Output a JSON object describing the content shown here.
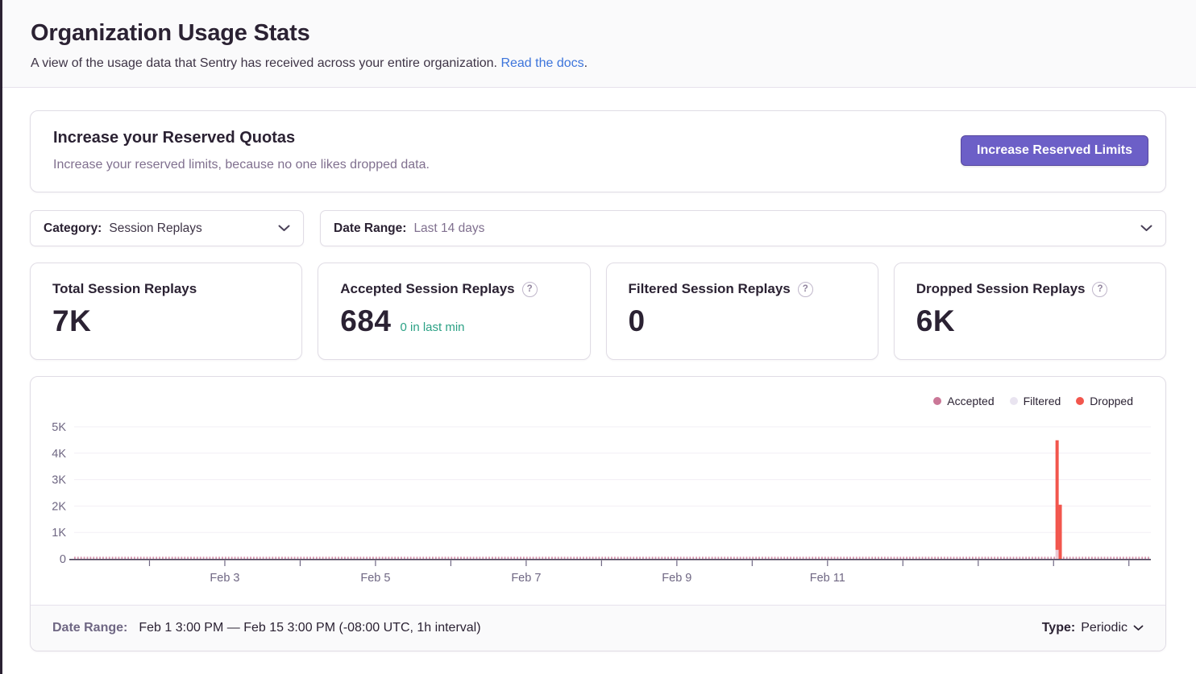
{
  "page": {
    "title": "Organization Usage Stats",
    "subtitle": "A view of the usage data that Sentry has received across your entire organization.",
    "docs_link": "Read the docs",
    "subtitle_period": "."
  },
  "quota_banner": {
    "title": "Increase your Reserved Quotas",
    "description": "Increase your reserved limits, because no one likes dropped data.",
    "button_label": "Increase Reserved Limits",
    "button_color": "#6C5FC7"
  },
  "filters": {
    "category_label": "Category:",
    "category_value": "Session Replays",
    "date_range_label": "Date Range:",
    "date_range_value": "Last 14 days"
  },
  "score_cards": [
    {
      "title": "Total Session Replays",
      "value": "7K"
    },
    {
      "title": "Accepted Session Replays",
      "value": "684",
      "trend": "0 in last min"
    },
    {
      "title": "Filtered Session Replays",
      "value": "0"
    },
    {
      "title": "Dropped Session Replays",
      "value": "6K"
    }
  ],
  "icons": {
    "help_glyph": "?"
  },
  "chart_data": {
    "type": "bar",
    "stacked": true,
    "interval": "1h",
    "x_start": "Feb 1",
    "x_end": "Feb 15",
    "hours_total": 343,
    "day_tick_every_hours": 24,
    "x_tick_labels": [
      {
        "label": "Feb 3",
        "hour": 48
      },
      {
        "label": "Feb 5",
        "hour": 96
      },
      {
        "label": "Feb 7",
        "hour": 144
      },
      {
        "label": "Feb 9",
        "hour": 192
      },
      {
        "label": "Feb 11",
        "hour": 240
      }
    ],
    "y_ticks": [
      {
        "label": "0",
        "value": 0
      },
      {
        "label": "1K",
        "value": 1000
      },
      {
        "label": "2K",
        "value": 2000
      },
      {
        "label": "3K",
        "value": 3000
      },
      {
        "label": "4K",
        "value": 4000
      },
      {
        "label": "5K",
        "value": 5000
      }
    ],
    "ylim": [
      0,
      5000
    ],
    "grid": true,
    "legend_position": "top-right",
    "series": [
      {
        "name": "Accepted",
        "color": "#CA7797",
        "bar_fill": "#EBC9D5",
        "total": 684
      },
      {
        "name": "Filtered",
        "color": "#E9E4F0",
        "bar_fill": "#E9E4F0",
        "total": 0
      },
      {
        "name": "Dropped",
        "color": "#F2564D",
        "bar_fill": "#F2564D",
        "total": 6000
      }
    ],
    "bars": [
      {
        "hour": 313,
        "accepted": 340,
        "filtered": 0,
        "dropped": 4150
      },
      {
        "hour": 314,
        "accepted": 0,
        "filtered": 0,
        "dropped": 2050
      }
    ],
    "baseline_accepted_per_hour_approx": 2,
    "axis_color": "#4A4158",
    "tick_color": "#6F6783",
    "gridline_color": "#F2EFF5"
  },
  "chart_footer": {
    "date_range_label": "Date Range:",
    "date_range_value": "Feb 1 3:00 PM — Feb 15 3:00 PM (-08:00 UTC, 1h interval)",
    "type_label": "Type:",
    "type_value": "Periodic"
  }
}
